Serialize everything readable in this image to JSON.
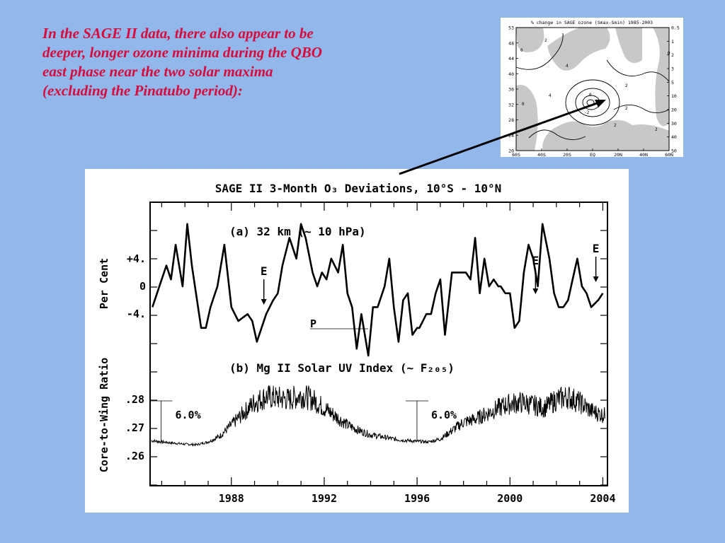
{
  "slide": {
    "text_lines": [
      "In the SAGE II data, there also appear to be",
      "deeper, longer ozone minima during the QBO",
      "east phase near the two solar maxima",
      "(excluding the Pinatubo period):"
    ]
  },
  "inset": {
    "title": "% change in SAGE ozone (Smax-Smin) 1985-2003",
    "left_ticks": [
      "53",
      "48",
      "44",
      "40",
      "36",
      "32",
      "28",
      "24",
      "20"
    ],
    "right_ticks": [
      "0.5",
      "1",
      "2",
      "3",
      "5",
      "10",
      "20",
      "30",
      "40",
      "50"
    ],
    "x_ticks": [
      "60S",
      "40S",
      "20S",
      "EQ",
      "20N",
      "40N",
      "60N"
    ],
    "contour_labels": [
      "0",
      "2",
      "4",
      "4",
      "0",
      "-2",
      "0",
      "2",
      "2",
      "2",
      "2",
      "0"
    ],
    "shade_color": "#c8c8c8"
  },
  "figure": {
    "title": "SAGE II 3-Month O₃ Deviations, 10°S - 10°N",
    "panel_a_label": "(a) 32 km (~ 10 hPa)",
    "panel_b_label": "(b) Mg II Solar UV Index (~ F₂₀₅)",
    "ylabel_a": "Per Cent",
    "ylabel_b": "Core-to-Wing Ratio",
    "y_ticks_a": [
      "+4.",
      "0",
      "-4."
    ],
    "y_ticks_b": [
      ".28",
      ".27",
      ".26"
    ],
    "x_ticks": [
      "1988",
      "1992",
      "1996",
      "2000",
      "2004"
    ],
    "pinatubo_label": "P",
    "annotations": [
      {
        "text": "E",
        "year": 1989.4
      },
      {
        "text": "E",
        "year": 2001.1
      },
      {
        "text": "E",
        "year": 2003.7
      }
    ],
    "pct_labels": [
      {
        "text": "6.0%",
        "year": 1985.4
      },
      {
        "text": "6.0%",
        "year": 1996.3
      }
    ]
  },
  "chart_data": [
    {
      "type": "line",
      "title": "SAGE II 3-Month O₃ Deviations, 10°S - 10°N",
      "subtitle": "(a) 32 km (~ 10 hPa)",
      "xlabel": "",
      "ylabel": "Per Cent",
      "xlim": [
        1984.5,
        2004.2
      ],
      "ylim": [
        -11,
        13
      ],
      "x_ticks": [
        1988,
        1992,
        1996,
        2000,
        2004
      ],
      "y_ticks": [
        4,
        0,
        -4
      ],
      "grid": false,
      "series": [
        {
          "x": [
            1984.6,
            1984.8,
            1985.2,
            1985.4,
            1985.6,
            1985.9,
            1986.1,
            1986.3,
            1986.7,
            1986.9,
            1987.1,
            1987.4,
            1987.7,
            1988.0,
            1988.3,
            1988.7,
            1988.9,
            1989.1,
            1989.3,
            1989.5,
            1989.8,
            1990.0,
            1990.2,
            1990.5,
            1990.8,
            1991.0,
            1991.2,
            1991.5,
            1991.7,
            1991.9,
            1992.1,
            1992.3,
            1992.6,
            1992.8,
            1993.0,
            1993.2,
            1993.4,
            1993.6,
            1993.9,
            1994.1,
            1994.3,
            1994.6,
            1994.8,
            1995.0,
            1995.2,
            1995.4,
            1995.6,
            1995.8,
            1996.0,
            1996.1,
            1996.4,
            1996.6,
            1996.8,
            1997.0,
            1997.2,
            1997.5,
            1997.8,
            1998.1,
            1998.3,
            1998.5,
            1998.7,
            1998.9,
            1999.1,
            1999.3,
            1999.5,
            1999.6,
            1999.8,
            2000.0,
            2000.2,
            2000.4,
            2000.6,
            2000.8,
            2001.0,
            2001.2,
            2001.4,
            2001.7,
            2001.9,
            2002.1,
            2002.3,
            2002.5,
            2002.7,
            2002.9,
            2003.1,
            2003.3,
            2003.5,
            2003.8,
            2004.0
          ],
          "y": [
            -3,
            -1,
            3,
            1,
            6,
            0,
            9,
            3,
            -6,
            -6,
            -3,
            0,
            6,
            -3,
            -5,
            -4,
            -5,
            -8,
            -6,
            -4,
            -2,
            -1,
            3,
            7,
            4,
            9,
            7,
            2,
            0,
            2,
            1,
            4,
            2,
            6,
            -1,
            -3,
            -9,
            -4,
            -10,
            -3,
            -3,
            0,
            4,
            -3,
            -8,
            -2,
            -1,
            -7,
            -6,
            -6,
            -4,
            -4,
            -1,
            1,
            -7,
            2,
            2,
            2,
            1,
            7,
            -1,
            4,
            0,
            1,
            0,
            0,
            -1,
            -1,
            -6,
            -5,
            2,
            6,
            4,
            0,
            9,
            4,
            -1,
            -3,
            -3,
            -2,
            1,
            4,
            0,
            -1,
            -3,
            -2,
            -1
          ]
        }
      ],
      "annotations": [
        {
          "text": "E",
          "x": 1989.4
        },
        {
          "text": "E",
          "x": 2001.1
        },
        {
          "text": "E",
          "x": 2003.7
        },
        {
          "text": "P",
          "x": 1992.0
        }
      ]
    },
    {
      "type": "line",
      "subtitle": "(b) Mg II Solar UV Index (~ F₂₀₅)",
      "xlabel": "",
      "ylabel": "Core-to-Wing Ratio",
      "xlim": [
        1984.5,
        2004.2
      ],
      "ylim": [
        0.2535,
        0.2925
      ],
      "x_ticks": [
        1988,
        1992,
        1996,
        2000,
        2004
      ],
      "y_ticks": [
        0.28,
        0.27,
        0.26
      ],
      "grid": false,
      "series": [
        {
          "x": [
            1984.5,
            1985.0,
            1985.5,
            1986.0,
            1986.5,
            1987.0,
            1987.5,
            1988.0,
            1988.5,
            1989.0,
            1989.5,
            1990.0,
            1990.5,
            1991.0,
            1991.5,
            1992.0,
            1992.5,
            1993.0,
            1993.5,
            1994.0,
            1994.5,
            1995.0,
            1995.5,
            1996.0,
            1996.5,
            1997.0,
            1997.5,
            1998.0,
            1998.5,
            1999.0,
            1999.5,
            2000.0,
            2000.5,
            2001.0,
            2001.5,
            2002.0,
            2002.5,
            2003.0,
            2003.5,
            2004.0
          ],
          "y": [
            0.2655,
            0.265,
            0.2646,
            0.2642,
            0.264,
            0.265,
            0.267,
            0.271,
            0.275,
            0.279,
            0.281,
            0.2805,
            0.28,
            0.2815,
            0.28,
            0.277,
            0.274,
            0.271,
            0.269,
            0.2675,
            0.2668,
            0.266,
            0.2655,
            0.2652,
            0.265,
            0.266,
            0.269,
            0.272,
            0.273,
            0.275,
            0.277,
            0.2785,
            0.279,
            0.278,
            0.277,
            0.28,
            0.281,
            0.279,
            0.276,
            0.2745
          ]
        }
      ],
      "annotations": [
        {
          "text": "6.0%",
          "x": 1985.4
        },
        {
          "text": "6.0%",
          "x": 1996.3
        }
      ]
    }
  ]
}
